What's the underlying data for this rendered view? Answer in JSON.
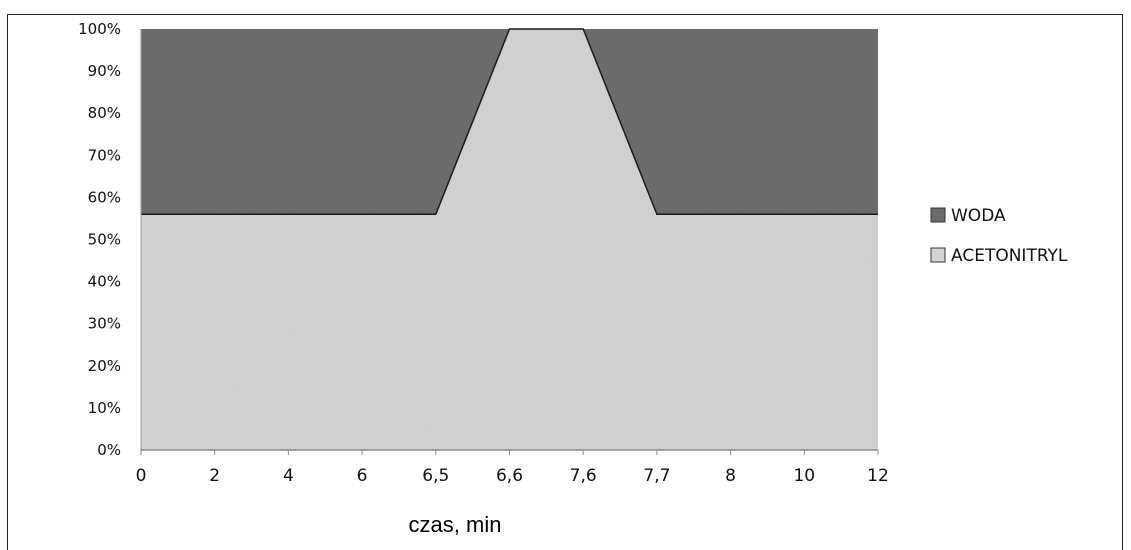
{
  "chart_data": {
    "type": "area",
    "stacked": true,
    "percent": true,
    "categories": [
      "0",
      "2",
      "4",
      "6",
      "6,5",
      "6,6",
      "7,6",
      "7,7",
      "8",
      "10",
      "12"
    ],
    "series": [
      {
        "name": "ACETONITRYL",
        "values": [
          56,
          56,
          56,
          56,
          56,
          100,
          100,
          56,
          56,
          56,
          56
        ],
        "color": "#d4d4d4"
      },
      {
        "name": "WODA",
        "values": [
          44,
          44,
          44,
          44,
          44,
          0,
          0,
          44,
          44,
          44,
          44
        ],
        "color": "#6b6b6b"
      }
    ],
    "y_ticks": [
      "0%",
      "10%",
      "20%",
      "30%",
      "40%",
      "50%",
      "60%",
      "70%",
      "80%",
      "90%",
      "100%"
    ],
    "ylim": [
      0,
      100
    ],
    "xlabel": "czas, min",
    "ylabel": "",
    "title": "",
    "legend_position": "right",
    "legend_order": [
      "WODA",
      "ACETONITRYL"
    ]
  }
}
